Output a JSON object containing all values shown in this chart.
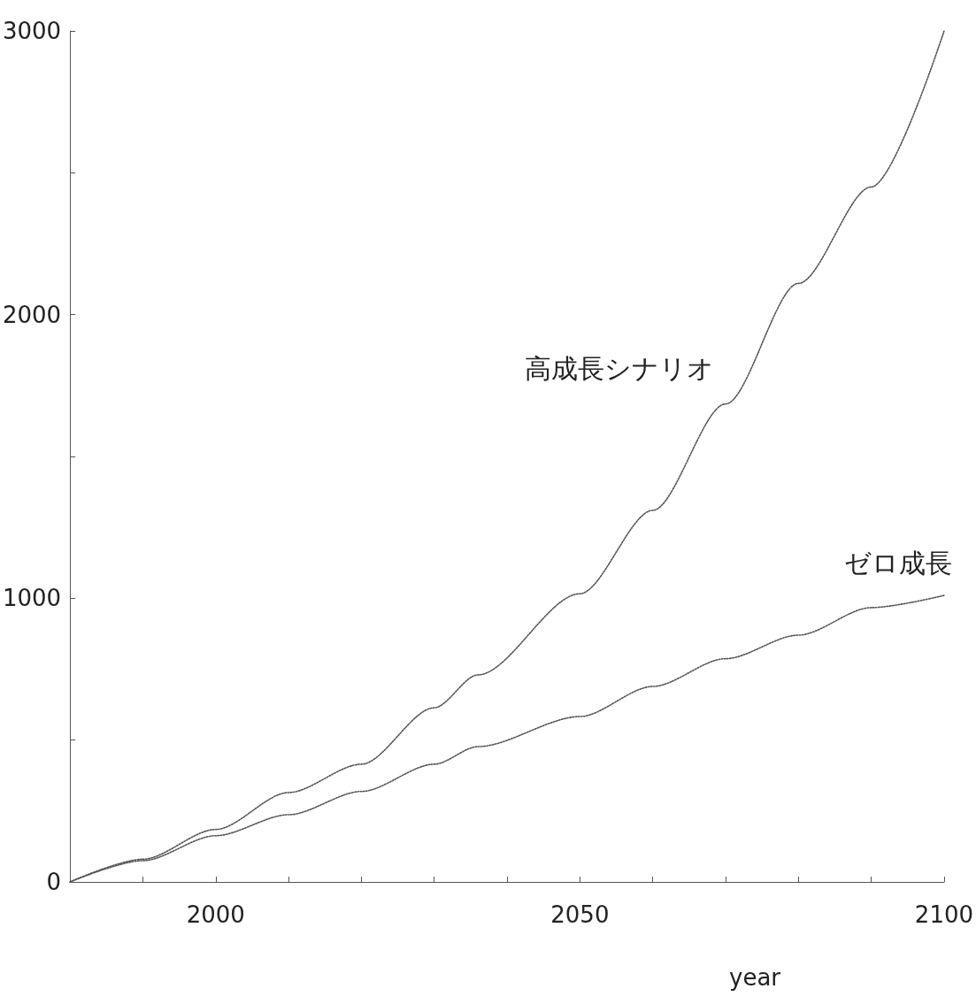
{
  "chart_data": {
    "type": "line",
    "xlabel": "year",
    "x": [
      1980,
      1990,
      2000,
      2010,
      2020,
      2030,
      2036,
      2050,
      2060,
      2070,
      2080,
      2090,
      2100
    ],
    "series": [
      {
        "name": "高成長シナリオ",
        "color": "#555555",
        "values": [
          0,
          80,
          185,
          315,
          415,
          614,
          730,
          1016,
          1310,
          1685,
          2110,
          2450,
          3000
        ]
      },
      {
        "name": "ゼロ成長",
        "color": "#555555",
        "values": [
          0,
          75,
          163,
          237,
          319,
          415,
          477,
          583,
          689,
          787,
          870,
          967,
          1010
        ]
      }
    ],
    "xlim": [
      1980,
      2100
    ],
    "xticks": [
      {
        "value": 1990,
        "label": null
      },
      2000,
      {
        "value": 2010,
        "label": null
      },
      {
        "value": 2020,
        "label": null
      },
      {
        "value": 2030,
        "label": null
      },
      {
        "value": 2040,
        "label": null
      },
      2050,
      {
        "value": 2060,
        "label": null
      },
      {
        "value": 2070,
        "label": null
      },
      {
        "value": 2080,
        "label": null
      },
      {
        "value": 2090,
        "label": null
      },
      2100
    ],
    "ylim": [
      0,
      3000
    ],
    "yticks": [
      0,
      {
        "value": 500,
        "label": null
      },
      1000,
      {
        "value": 1500,
        "label": null
      },
      2000,
      {
        "value": 2500,
        "label": null
      },
      3000
    ],
    "grid": false,
    "legend": false,
    "marker": "none",
    "line_style": "dotted"
  }
}
